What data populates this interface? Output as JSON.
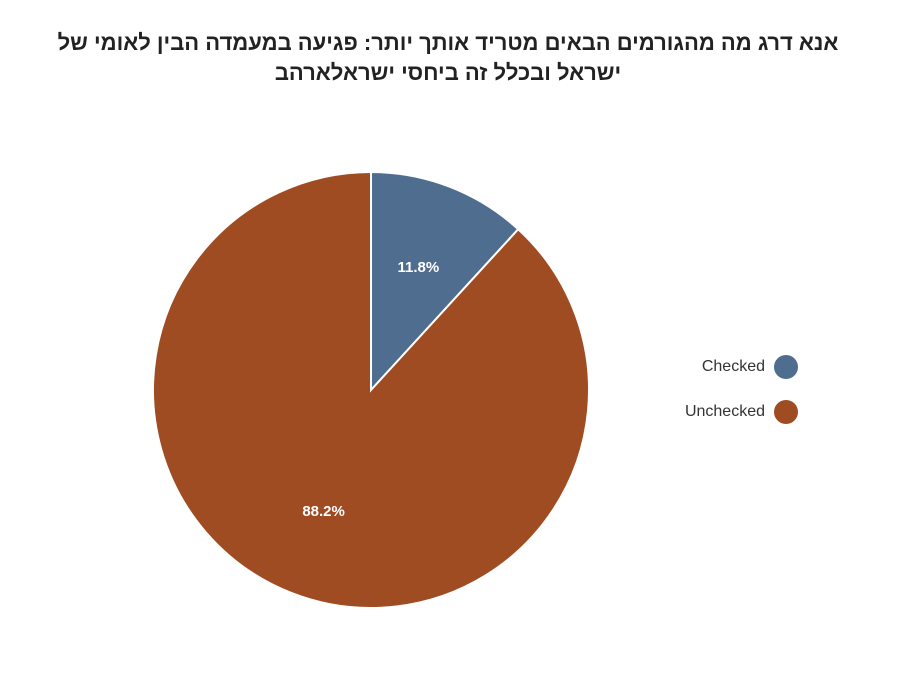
{
  "chart_data": {
    "type": "pie",
    "title": "אנא דרג מה מהגורמים הבאים מטריד אותך יותר:  פגיעה במעמדה הבין לאומי של ישראל ובכלל זה ביחסי ישראלארהב",
    "categories": [
      "Checked",
      "Unchecked"
    ],
    "values": [
      11.8,
      88.2
    ],
    "data_labels": [
      "11.8%",
      "88.2%"
    ],
    "colors": [
      "#4e6d8f",
      "#a04c22"
    ],
    "legend_position": "right"
  }
}
